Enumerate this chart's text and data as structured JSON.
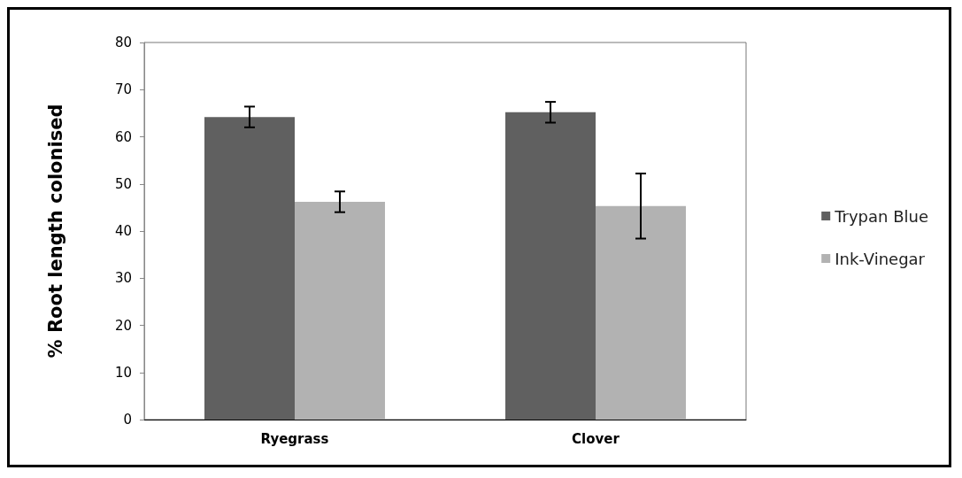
{
  "chart_data": {
    "type": "bar",
    "ylabel": "% Root length colonised",
    "categories": [
      "Ryegrass",
      "Clover"
    ],
    "series": [
      {
        "name": "Trypan Blue",
        "color": "#606060",
        "values": [
          64.2,
          65.2
        ],
        "errors": [
          2.2,
          2.2
        ]
      },
      {
        "name": "Ink-Vinegar",
        "color": "#b2b2b2",
        "values": [
          46.2,
          45.3
        ],
        "errors": [
          2.2,
          6.9
        ]
      }
    ],
    "ylim": [
      0,
      80
    ],
    "yticks": [
      0,
      10,
      20,
      30,
      40,
      50,
      60,
      70,
      80
    ],
    "grid": false,
    "legend": "right"
  }
}
